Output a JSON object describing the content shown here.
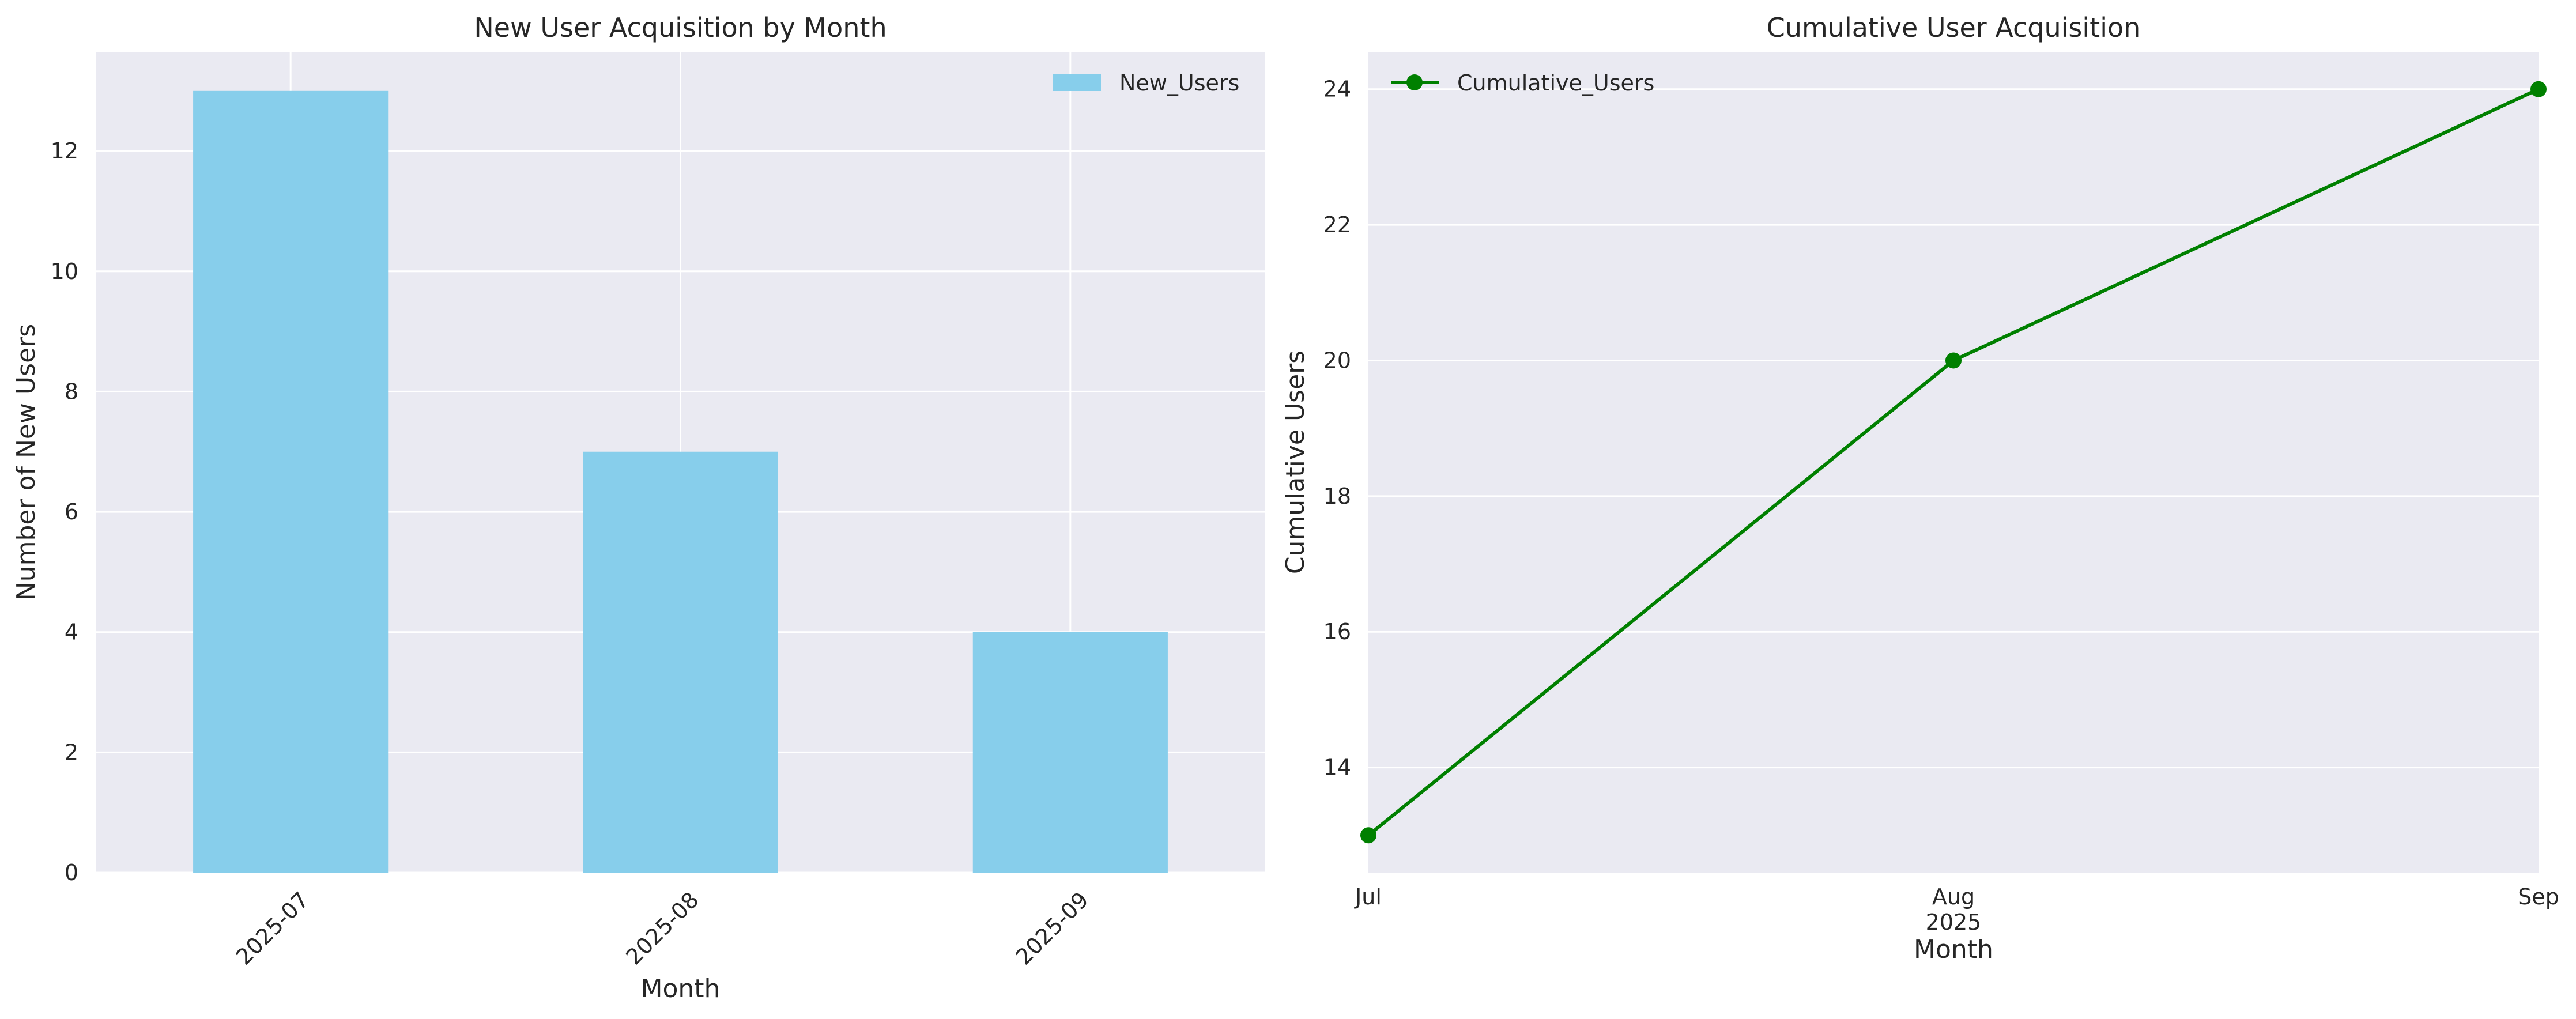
{
  "colors": {
    "background": "#eaeaf2",
    "grid": "#ffffff",
    "bar": "#87ceeb",
    "line": "#008000",
    "text": "#262626"
  },
  "chart_data": [
    {
      "type": "bar",
      "title": "New User Acquisition by Month",
      "xlabel": "Month",
      "ylabel": "Number of New Users",
      "categories": [
        "2025-07",
        "2025-08",
        "2025-09"
      ],
      "series": [
        {
          "name": "New_Users",
          "values": [
            13,
            7,
            4
          ]
        }
      ],
      "ylim": [
        0,
        13.65
      ],
      "yticks": [
        0,
        2,
        4,
        6,
        8,
        10,
        12
      ],
      "grid": true,
      "legend": "top-right"
    },
    {
      "type": "line",
      "title": "Cumulative User Acquisition",
      "xlabel": "Month",
      "ylabel": "Cumulative Users",
      "x": [
        "2025-07",
        "2025-08",
        "2025-09"
      ],
      "xtick_labels": [
        "Jul",
        "Aug",
        "Sep"
      ],
      "xtick_sublabel": "2025",
      "series": [
        {
          "name": "Cumulative_Users",
          "values": [
            13,
            20,
            24
          ],
          "marker": "circle"
        }
      ],
      "ylim": [
        12.45,
        24.55
      ],
      "yticks": [
        14,
        16,
        18,
        20,
        22,
        24
      ],
      "grid": true,
      "legend": "top-left"
    }
  ]
}
